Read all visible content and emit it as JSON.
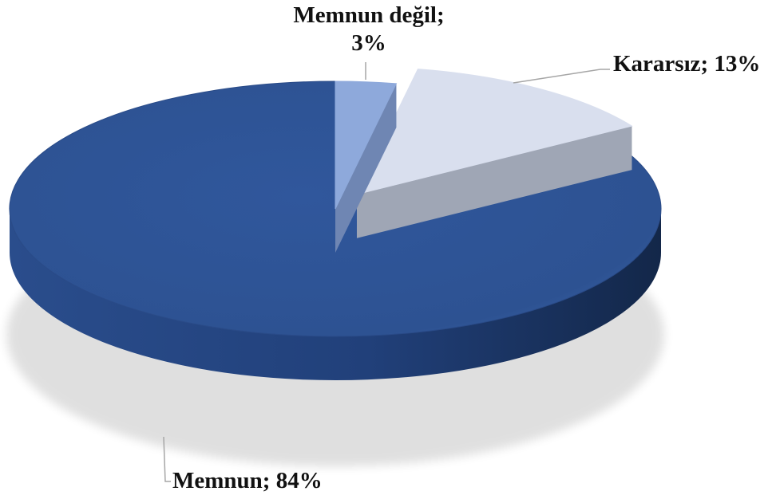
{
  "chart_data": {
    "type": "pie",
    "style": "3d-exploded",
    "title": "",
    "slices": [
      {
        "name": "Memnun değil",
        "value": 3,
        "label_line1": "Memnun değil;",
        "label_line2": "3%",
        "color": "#8EA9DB",
        "side_color": "#6F86B3",
        "exploded": false
      },
      {
        "name": "Kararsız",
        "value": 13,
        "label_line1": "Kararsız; 13%",
        "label_line2": "",
        "color": "#D9DFEE",
        "side_color": "#9FA6B5",
        "exploded": true
      },
      {
        "name": "Memnun",
        "value": 84,
        "label_line1": "Memnun; 84%",
        "label_line2": "",
        "color": "#2F5496",
        "side_color": "#1F3864",
        "exploded": false
      }
    ]
  }
}
